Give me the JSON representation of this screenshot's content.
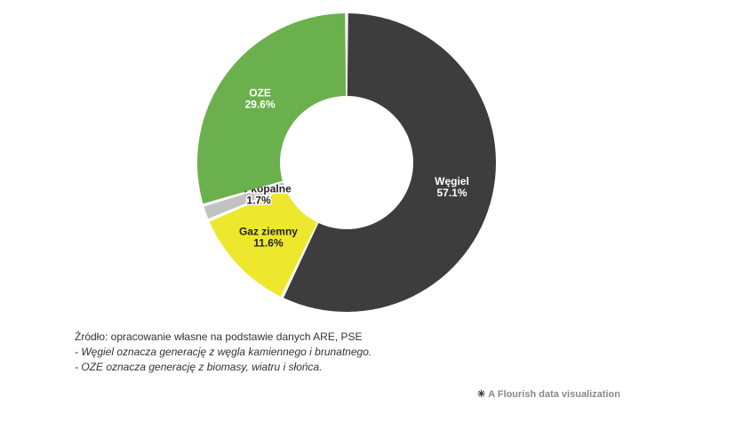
{
  "chart_data": {
    "type": "pie",
    "donut": true,
    "categories": [
      "Węgiel",
      "Gaz ziemny",
      "Inne kopalne",
      "OZE"
    ],
    "values": [
      57.1,
      11.6,
      1.7,
      29.6
    ],
    "labels": [
      "57.1%",
      "11.6%",
      "1.7%",
      "29.6%"
    ],
    "colors": [
      "#3d3d3d",
      "#ede82d",
      "#c2c2c2",
      "#6ab04c"
    ],
    "label_colors": [
      "#ffffff",
      "#222222",
      "#222222",
      "#ffffff"
    ],
    "legend": "none"
  },
  "footer": {
    "source": "Źródło: opracowanie własne na podstawie danych ARE, PSE",
    "notes": [
      "- Węgiel oznacza generację z węgla kamiennego i brunatnego.",
      "- OZE oznacza generację z biomasy, wiatru i słońca."
    ],
    "credit_icon": "flourish-star-icon",
    "credit": "A Flourish data visualization"
  }
}
